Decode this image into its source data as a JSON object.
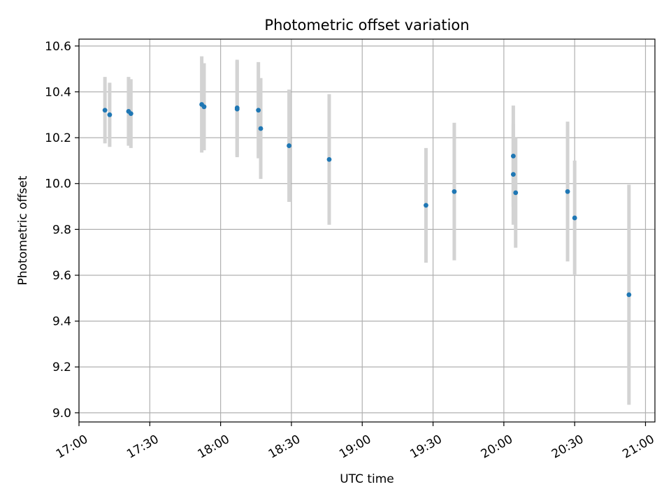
{
  "chart_data": {
    "type": "scatter",
    "title": "Photometric offset variation",
    "xlabel": "UTC time",
    "ylabel": "Photometric offset",
    "x_unit": "UTC time",
    "xlim": [
      "17:00",
      "21:04"
    ],
    "ylim": [
      8.96,
      10.63
    ],
    "x_ticks": [
      "17:00",
      "17:30",
      "18:00",
      "18:30",
      "19:00",
      "19:30",
      "20:00",
      "20:30",
      "21:00"
    ],
    "y_ticks": [
      9.0,
      9.2,
      9.4,
      9.6,
      9.8,
      10.0,
      10.2,
      10.4,
      10.6
    ],
    "y_tick_labels": [
      "9.0",
      "9.2",
      "9.4",
      "9.6",
      "9.8",
      "10.0",
      "10.2",
      "10.4",
      "10.6"
    ],
    "grid": true,
    "marker_color": "#1f77b4",
    "errorbar_color": "#d3d3d3",
    "points": [
      {
        "x": "17:11",
        "y": 10.32,
        "err": 0.145
      },
      {
        "x": "17:13",
        "y": 10.3,
        "err": 0.14
      },
      {
        "x": "17:21",
        "y": 10.315,
        "err": 0.15
      },
      {
        "x": "17:22",
        "y": 10.305,
        "err": 0.15
      },
      {
        "x": "17:52",
        "y": 10.345,
        "err": 0.21
      },
      {
        "x": "17:53",
        "y": 10.335,
        "err": 0.19
      },
      {
        "x": "18:07",
        "y": 10.33,
        "err": 0.21
      },
      {
        "x": "18:07",
        "y": 10.325,
        "err": 0.21
      },
      {
        "x": "18:16",
        "y": 10.32,
        "err": 0.21
      },
      {
        "x": "18:17",
        "y": 10.24,
        "err": 0.22
      },
      {
        "x": "18:29",
        "y": 10.165,
        "err": 0.245
      },
      {
        "x": "18:46",
        "y": 10.105,
        "err": 0.285
      },
      {
        "x": "19:27",
        "y": 9.905,
        "err": 0.25
      },
      {
        "x": "19:39",
        "y": 9.965,
        "err": 0.3
      },
      {
        "x": "20:04",
        "y": 10.04,
        "err": 0.22
      },
      {
        "x": "20:04",
        "y": 10.12,
        "err": 0.22
      },
      {
        "x": "20:05",
        "y": 9.96,
        "err": 0.24
      },
      {
        "x": "20:27",
        "y": 9.965,
        "err": 0.305
      },
      {
        "x": "20:30",
        "y": 9.85,
        "err": 0.25
      },
      {
        "x": "20:53",
        "y": 9.515,
        "err": 0.48
      }
    ]
  }
}
